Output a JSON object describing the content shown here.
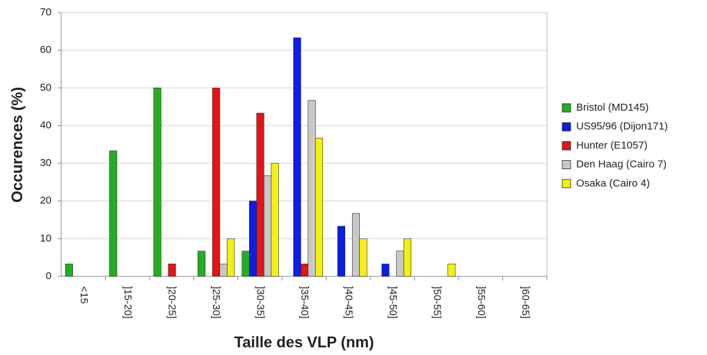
{
  "chart_data": {
    "type": "bar",
    "x_label": "Taille des VLP (nm)",
    "y_label": "Occurences (%)",
    "categories": [
      "<15",
      "]15-20]",
      "]20-25]",
      "]25-30]",
      "]30-35]",
      "]35-40]",
      "]40-45]",
      "]45-50]",
      "]50-55]",
      "]55-60]",
      "]60-65]"
    ],
    "series": [
      {
        "name": "Bristol (MD145)",
        "color": "#22b022",
        "values": [
          3.3,
          33.3,
          50,
          6.7,
          6.7,
          0,
          0,
          0,
          0,
          0,
          0
        ]
      },
      {
        "name": "US95/96 (Dijon171)",
        "color": "#0a1ee6",
        "values": [
          0,
          0,
          0,
          0,
          20,
          63.3,
          13.3,
          3.3,
          0,
          0,
          0
        ]
      },
      {
        "name": "Hunter (E1057)",
        "color": "#e61414",
        "values": [
          0,
          0,
          3.3,
          50,
          43.3,
          3.3,
          0,
          0,
          0,
          0,
          0
        ]
      },
      {
        "name": "Den Haag (Cairo 7)",
        "color": "#c8c8c8",
        "values": [
          0,
          0,
          0,
          3.3,
          26.7,
          46.7,
          16.7,
          6.7,
          0,
          0,
          0
        ]
      },
      {
        "name": "Osaka (Cairo 4)",
        "color": "#f5f014",
        "values": [
          0,
          0,
          0,
          10,
          30,
          36.7,
          10,
          10,
          3.3,
          0,
          0
        ]
      }
    ],
    "ylim": [
      0,
      70
    ],
    "yticks": [
      0,
      10,
      20,
      30,
      40,
      50,
      60,
      70
    ],
    "grid": true,
    "legend": "right"
  }
}
